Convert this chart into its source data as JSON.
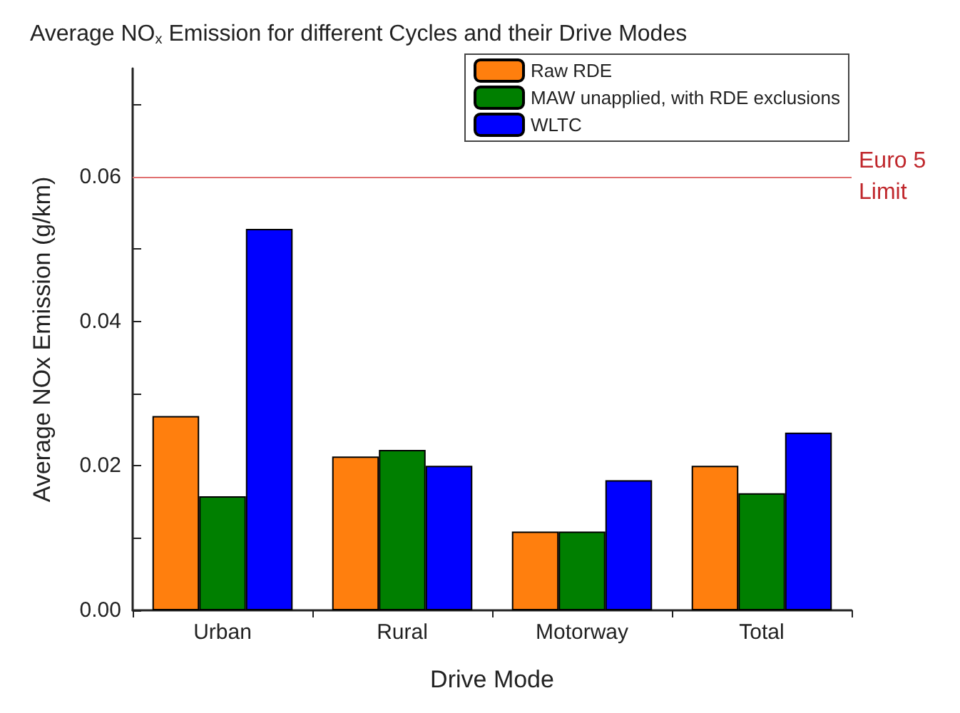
{
  "chart_data": {
    "type": "bar",
    "title": "Average NO$_{x}$ Emission for different Cycles and their Drive Modes",
    "xlabel": "Drive Mode",
    "ylabel": "Average NOx Emission (g/km)",
    "categories": [
      "Urban",
      "Rural",
      "Motorway",
      "Total"
    ],
    "series": [
      {
        "name": "Raw RDE",
        "color": "#ff7f0e",
        "values": [
          0.0269,
          0.0213,
          0.0109,
          0.02
        ]
      },
      {
        "name": "MAW unapplied, with RDE exclusions",
        "color": "#007f00",
        "values": [
          0.0158,
          0.0222,
          0.0109,
          0.0162
        ]
      },
      {
        "name": "WLTC",
        "color": "#0000ff",
        "values": [
          0.0528,
          0.02,
          0.018,
          0.0246
        ]
      }
    ],
    "ylim": [
      0,
      0.075
    ],
    "yticks": [
      {
        "value": 0,
        "label": "0.00"
      },
      {
        "value": 0.01,
        "label": null
      },
      {
        "value": 0.02,
        "label": "0.02"
      },
      {
        "value": 0.03,
        "label": null
      },
      {
        "value": 0.04,
        "label": "0.04"
      },
      {
        "value": 0.05,
        "label": null
      },
      {
        "value": 0.06,
        "label": "0.06"
      },
      {
        "value": 0.07,
        "label": null
      }
    ],
    "ref_lines": [
      {
        "axis": "y",
        "value": 0.06,
        "label": "Euro 5\nLimit",
        "color": "#e07070"
      }
    ],
    "legend": "top right",
    "grid": false
  }
}
